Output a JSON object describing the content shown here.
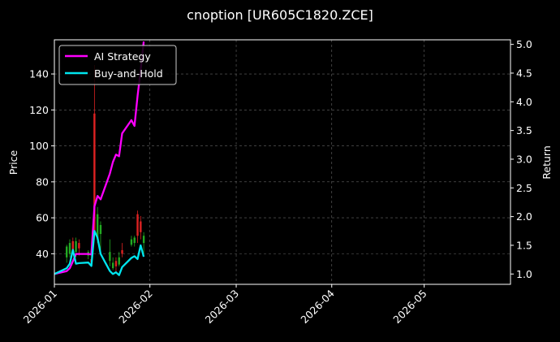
{
  "chart_data": {
    "type": "line",
    "title": "cnoption [UR605C1820.ZCE]",
    "ylabel": "Price",
    "y2label": "Return",
    "grid": true,
    "legend": "top-left",
    "x_ticks": [
      "2026-01",
      "2026-02",
      "2026-03",
      "2026-04",
      "2026-05"
    ],
    "x_tick_dates": [
      "2026-01-01",
      "2026-02-01",
      "2026-03-01",
      "2026-04-01",
      "2026-05-01"
    ],
    "xlim": [
      "2026-01-01",
      "2026-05-29"
    ],
    "ylim": [
      23,
      159
    ],
    "y2lim": [
      0.82,
      5.08
    ],
    "y_ticks": [
      40,
      60,
      80,
      100,
      120,
      140
    ],
    "y2_ticks": [
      1.0,
      1.5,
      2.0,
      2.5,
      3.0,
      3.5,
      4.0,
      4.5,
      5.0
    ],
    "candles": [
      {
        "date": "2026-01-05",
        "open": 38,
        "close": 44,
        "high": 45,
        "low": 35
      },
      {
        "date": "2026-01-06",
        "open": 40,
        "close": 46,
        "high": 48,
        "low": 38
      },
      {
        "date": "2026-01-07",
        "open": 47,
        "close": 42,
        "high": 49,
        "low": 40
      },
      {
        "date": "2026-01-08",
        "open": 41,
        "close": 47,
        "high": 49,
        "low": 38
      },
      {
        "date": "2026-01-09",
        "open": 46,
        "close": 43,
        "high": 48,
        "low": 39
      },
      {
        "date": "2026-01-12",
        "open": 39,
        "close": 41,
        "high": 42,
        "low": 37
      },
      {
        "date": "2026-01-13",
        "open": 37,
        "close": 35,
        "high": 40,
        "low": 33
      },
      {
        "date": "2026-01-14",
        "open": 118,
        "close": 52,
        "high": 145,
        "low": 50
      },
      {
        "date": "2026-01-15",
        "open": 48,
        "close": 62,
        "high": 66,
        "low": 46
      },
      {
        "date": "2026-01-16",
        "open": 51,
        "close": 56,
        "high": 58,
        "low": 40
      },
      {
        "date": "2026-01-19",
        "open": 36,
        "close": 41,
        "high": 48,
        "low": 33
      },
      {
        "date": "2026-01-20",
        "open": 32,
        "close": 35,
        "high": 38,
        "low": 31
      },
      {
        "date": "2026-01-21",
        "open": 36,
        "close": 33,
        "high": 38,
        "low": 30
      },
      {
        "date": "2026-01-22",
        "open": 34,
        "close": 38,
        "high": 41,
        "low": 33
      },
      {
        "date": "2026-01-23",
        "open": 42,
        "close": 40,
        "high": 46,
        "low": 38
      },
      {
        "date": "2026-01-26",
        "open": 45,
        "close": 48,
        "high": 50,
        "low": 44
      },
      {
        "date": "2026-01-27",
        "open": 46,
        "close": 49,
        "high": 50,
        "low": 44
      },
      {
        "date": "2026-01-28",
        "open": 62,
        "close": 50,
        "high": 64,
        "low": 46
      },
      {
        "date": "2026-01-29",
        "open": 58,
        "close": 52,
        "high": 61,
        "low": 48
      },
      {
        "date": "2026-01-30",
        "open": 46,
        "close": 50,
        "high": 52,
        "low": 40
      }
    ],
    "series": [
      {
        "name": "AI Strategy",
        "color": "#ff00ff",
        "x": [
          "2026-01-01",
          "2026-01-05",
          "2026-01-06",
          "2026-01-07",
          "2026-01-08",
          "2026-01-09",
          "2026-01-12",
          "2026-01-13",
          "2026-01-14",
          "2026-01-15",
          "2026-01-16",
          "2026-01-19",
          "2026-01-20",
          "2026-01-21",
          "2026-01-22",
          "2026-01-23",
          "2026-01-26",
          "2026-01-27",
          "2026-01-28",
          "2026-01-29",
          "2026-01-30"
        ],
        "values": [
          1.0,
          1.05,
          1.1,
          1.22,
          1.35,
          1.35,
          1.35,
          1.34,
          2.18,
          2.36,
          2.3,
          2.75,
          2.95,
          3.08,
          3.05,
          3.45,
          3.68,
          3.58,
          4.1,
          4.55,
          5.05
        ]
      },
      {
        "name": "Buy-and-Hold",
        "color": "#00e5ee",
        "x": [
          "2026-01-01",
          "2026-01-05",
          "2026-01-06",
          "2026-01-07",
          "2026-01-08",
          "2026-01-09",
          "2026-01-12",
          "2026-01-13",
          "2026-01-14",
          "2026-01-15",
          "2026-01-16",
          "2026-01-19",
          "2026-01-20",
          "2026-01-21",
          "2026-01-22",
          "2026-01-23",
          "2026-01-26",
          "2026-01-27",
          "2026-01-28",
          "2026-01-29",
          "2026-01-30"
        ],
        "values": [
          1.0,
          1.1,
          1.18,
          1.42,
          1.18,
          1.19,
          1.2,
          1.14,
          1.75,
          1.63,
          1.35,
          1.05,
          1.0,
          1.03,
          0.98,
          1.12,
          1.28,
          1.31,
          1.26,
          1.5,
          1.3
        ]
      }
    ]
  }
}
